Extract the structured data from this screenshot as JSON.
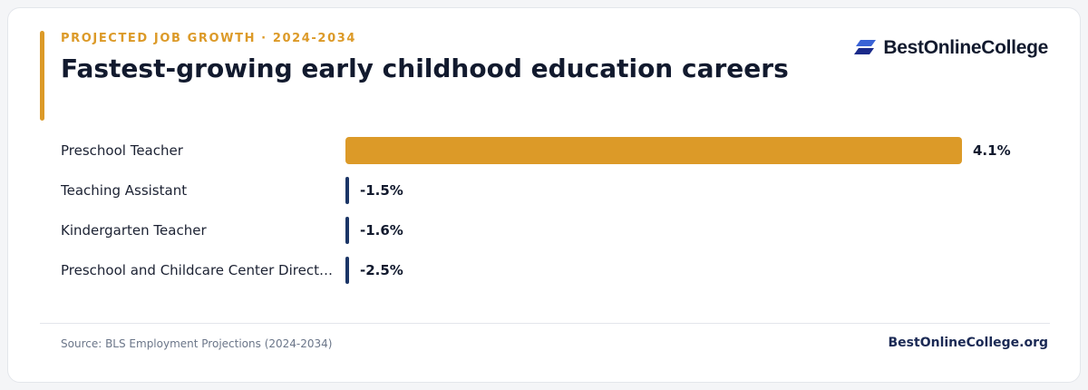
{
  "header": {
    "eyebrow": "PROJECTED JOB GROWTH · 2024-2034",
    "title": "Fastest-growing early childhood education careers",
    "logo_text": "BestOnlineCollege",
    "logo_icon": "stacked-parallelogram-logo-icon"
  },
  "colors": {
    "accent": "#dc9a28",
    "positive_bar": "#dc9a28",
    "negative_bar": "#1b3566",
    "brand_navy": "#1b2a55"
  },
  "chart_data": {
    "type": "bar",
    "orientation": "horizontal",
    "categories": [
      "Preschool Teacher",
      "Teaching Assistant",
      "Kindergarten Teacher",
      "Preschool and Childcare Center Direct…"
    ],
    "values": [
      4.1,
      -1.5,
      -1.6,
      -2.5
    ],
    "value_labels": [
      "4.1%",
      "-1.5%",
      "-1.6%",
      "-2.5%"
    ],
    "unit": "%",
    "xlabel": "",
    "ylabel": "",
    "grid": false,
    "legend": "none"
  },
  "footer": {
    "source": "Source: BLS Employment Projections (2024-2034)",
    "brand_url": "BestOnlineCollege.org"
  }
}
